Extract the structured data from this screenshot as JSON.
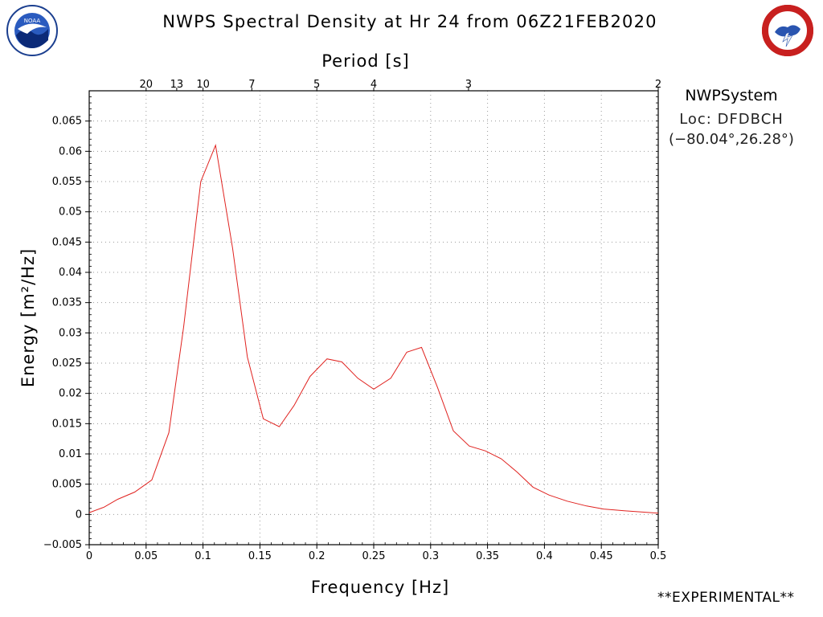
{
  "header": {
    "title": "NWPS Spectral Density at Hr 24 from 06Z21FEB2020",
    "period_label": "Period [s]"
  },
  "logos": {
    "left_icon": "noaa-logo-icon",
    "left_text": "NOAA",
    "right_icon": "national-weather-service-logo-icon",
    "right_text": "NATIONAL WEATHER SERVICE"
  },
  "side_info": {
    "system": "NWPSystem",
    "location": "Loc: DFDBCH",
    "coords": "(−80.04°,26.28°)"
  },
  "footer": {
    "note": "**EXPERIMENTAL**"
  },
  "colors": {
    "line": "#e0221f",
    "grid": "#9a9a9a",
    "frame": "#000000"
  },
  "chart_data": {
    "type": "line",
    "title": "NWPS Spectral Density at Hr 24 from 06Z21FEB2020",
    "xlabel": "Frequency [Hz]",
    "ylabel": "Energy [m²/Hz]",
    "x2label": "Period [s]",
    "xlim": [
      0,
      0.5
    ],
    "ylim": [
      -0.005,
      0.07
    ],
    "grid": true,
    "x_ticks": [
      0,
      0.05,
      0.1,
      0.15,
      0.2,
      0.25,
      0.3,
      0.35,
      0.4,
      0.45,
      0.5
    ],
    "x_tick_labels": [
      "0",
      "0.05",
      "0.1",
      "0.15",
      "0.2",
      "0.25",
      "0.3",
      "0.35",
      "0.4",
      "0.45",
      "0.5"
    ],
    "y_ticks": [
      -0.005,
      0,
      0.005,
      0.01,
      0.015,
      0.02,
      0.025,
      0.03,
      0.035,
      0.04,
      0.045,
      0.05,
      0.055,
      0.06,
      0.065
    ],
    "y_tick_labels": [
      "−0.005",
      "0",
      "0.005",
      "0.01",
      "0.015",
      "0.02",
      "0.025",
      "0.03",
      "0.035",
      "0.04",
      "0.045",
      "0.05",
      "0.055",
      "0.06",
      "0.065"
    ],
    "period_ticks": [
      {
        "label": "20",
        "x": 0.05
      },
      {
        "label": "13",
        "x": 0.0769
      },
      {
        "label": "10",
        "x": 0.1
      },
      {
        "label": "7",
        "x": 0.1429
      },
      {
        "label": "5",
        "x": 0.2
      },
      {
        "label": "4",
        "x": 0.25
      },
      {
        "label": "3",
        "x": 0.3333
      },
      {
        "label": "2",
        "x": 0.5
      }
    ],
    "series": [
      {
        "x": [
          0,
          0.013,
          0.025,
          0.04,
          0.055,
          0.07,
          0.083,
          0.098,
          0.111,
          0.126,
          0.139,
          0.153,
          0.167,
          0.18,
          0.194,
          0.209,
          0.222,
          0.236,
          0.25,
          0.265,
          0.279,
          0.292,
          0.306,
          0.32,
          0.334,
          0.348,
          0.362,
          0.376,
          0.39,
          0.404,
          0.42,
          0.437,
          0.452,
          0.47,
          0.485,
          0.5
        ],
        "y": [
          0.0003,
          0.0012,
          0.0025,
          0.0037,
          0.0057,
          0.0135,
          0.031,
          0.055,
          0.061,
          0.044,
          0.026,
          0.0158,
          0.0145,
          0.018,
          0.0228,
          0.0257,
          0.0252,
          0.0225,
          0.0207,
          0.0225,
          0.0268,
          0.0276,
          0.021,
          0.0138,
          0.0113,
          0.0105,
          0.0092,
          0.007,
          0.0045,
          0.0032,
          0.0022,
          0.0014,
          0.0009,
          0.0006,
          0.0004,
          0.0002
        ]
      }
    ]
  }
}
